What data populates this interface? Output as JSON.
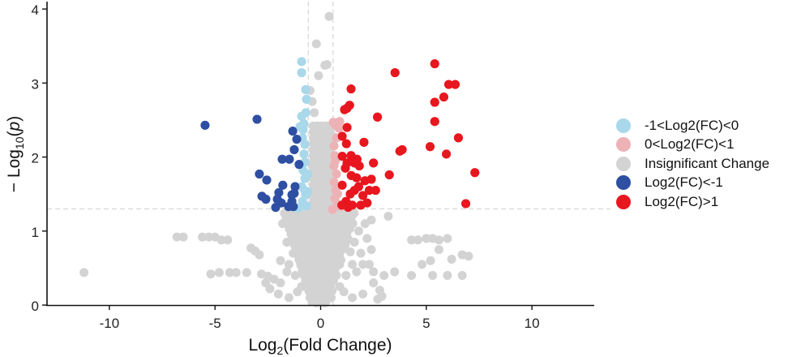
{
  "chart_data": {
    "type": "scatter",
    "title": "",
    "xlabel": "Log2(Fold Change)",
    "xlabel_main": "Log",
    "xlabel_sub": "2",
    "xlabel_rest": "(Fold Change)",
    "ylabel": "-Log10(p)",
    "ylabel_prefix": "− Log",
    "ylabel_sub": "10",
    "ylabel_open": "(",
    "ylabel_italic": "p",
    "ylabel_close": ")",
    "xlim": [
      -12.95,
      12.95
    ],
    "ylim": [
      0,
      4.1
    ],
    "xticks": [
      -10,
      -5,
      0,
      5,
      10
    ],
    "xtick_labels": [
      "-10",
      "-5",
      "0",
      "5",
      "10"
    ],
    "yticks": [
      0,
      1,
      2,
      3,
      4
    ],
    "ytick_labels": [
      "0",
      "1",
      "2",
      "3",
      "4"
    ],
    "grid": false,
    "threshold_lines": {
      "horizontal": 1.3,
      "vertical": [
        -0.585,
        0.585
      ],
      "color": "#D9D9D9",
      "style": "dashed"
    },
    "legend_position": "right",
    "series": [
      {
        "name": "-1<Log2(FC)<0",
        "color": "#A8D8EA",
        "points": [
          [
            -0.9,
            3.29
          ],
          [
            -0.9,
            3.14
          ],
          [
            -0.71,
            2.91
          ],
          [
            -0.67,
            2.78
          ],
          [
            -0.9,
            2.55
          ],
          [
            -0.79,
            2.45
          ],
          [
            -0.98,
            2.41
          ],
          [
            -0.83,
            2.37
          ],
          [
            -0.86,
            2.26
          ],
          [
            -0.75,
            2.17
          ],
          [
            -0.79,
            2.04
          ],
          [
            -0.75,
            1.93
          ],
          [
            -0.83,
            1.82
          ],
          [
            -0.75,
            1.71
          ],
          [
            -0.9,
            1.6
          ],
          [
            -0.71,
            1.49
          ],
          [
            -0.86,
            1.4
          ],
          [
            -0.67,
            1.34
          ],
          [
            -1.05,
            1.31
          ],
          [
            -0.6,
            1.53
          ],
          [
            -0.6,
            1.77
          ],
          [
            -0.7,
            2.6
          ],
          [
            -0.75,
            1.55
          ]
        ]
      },
      {
        "name": "0<Log2(FC)<1",
        "color": "#EDB2B6",
        "points": [
          [
            0.6,
            2.47
          ],
          [
            0.71,
            2.43
          ],
          [
            0.86,
            2.39
          ],
          [
            0.75,
            2.26
          ],
          [
            0.63,
            2.15
          ],
          [
            0.67,
            2.02
          ],
          [
            0.63,
            1.88
          ],
          [
            0.75,
            1.77
          ],
          [
            0.63,
            1.66
          ],
          [
            0.71,
            1.55
          ],
          [
            0.67,
            1.44
          ],
          [
            0.79,
            1.37
          ],
          [
            0.94,
            1.33
          ],
          [
            0.56,
            1.29
          ],
          [
            0.9,
            2.48
          ],
          [
            0.8,
            1.5
          ],
          [
            0.7,
            1.95
          ]
        ]
      },
      {
        "name": "Insignificant Change",
        "color": "#D3D3D3",
        "points": [
          [
            -11.2,
            0.44
          ],
          [
            -6.8,
            0.92
          ],
          [
            -6.5,
            0.92
          ],
          [
            -5.6,
            0.92
          ],
          [
            -5.3,
            0.92
          ],
          [
            -5,
            0.92
          ],
          [
            -4.7,
            0.88
          ],
          [
            -4.4,
            0.88
          ],
          [
            -3.3,
            0.77
          ],
          [
            -3.1,
            0.73
          ],
          [
            -2.9,
            0.68
          ],
          [
            -3.5,
            0.44
          ],
          [
            -4.3,
            0.44
          ],
          [
            -4,
            0.44
          ],
          [
            -4.8,
            0.44
          ],
          [
            -5.2,
            0.42
          ],
          [
            -2.8,
            0.42
          ],
          [
            -2.5,
            0.39
          ],
          [
            -2.2,
            0.35
          ],
          [
            -1.9,
            0.3
          ],
          [
            -1.6,
            0.45
          ],
          [
            -1.9,
            0.6
          ],
          [
            -1.6,
            0.85
          ],
          [
            -1.3,
            0.95
          ],
          [
            -1.8,
            1.1
          ],
          [
            -1.4,
            1.2
          ],
          [
            -1,
            1.1
          ],
          [
            -0.2,
            3.53
          ],
          [
            0.4,
            3.9
          ],
          [
            -0.1,
            3.1
          ],
          [
            0.2,
            3.24
          ],
          [
            0.3,
            3.25
          ],
          [
            -0.5,
            2.9
          ],
          [
            -0.4,
            2.75
          ],
          [
            -0.3,
            2.6
          ],
          [
            0.3,
            2.42
          ],
          [
            0.5,
            2.3
          ],
          [
            -0.4,
            1.9
          ],
          [
            -0.2,
            2.2
          ],
          [
            0.1,
            2.0
          ],
          [
            -0.1,
            1.7
          ],
          [
            0.2,
            1.6
          ],
          [
            -0.3,
            1.4
          ],
          [
            0.3,
            1.4
          ],
          [
            -0.6,
            1.2
          ],
          [
            0.6,
            1.2
          ],
          [
            -0.8,
            1.1
          ],
          [
            0.9,
            1.05
          ],
          [
            -0.4,
            1.0
          ],
          [
            0.4,
            1.0
          ],
          [
            0,
            1.1
          ],
          [
            -1.1,
            0.9
          ],
          [
            1.2,
            0.95
          ],
          [
            -0.7,
            0.8
          ],
          [
            0.7,
            0.8
          ],
          [
            0,
            0.85
          ],
          [
            -1.3,
            0.7
          ],
          [
            1.4,
            0.72
          ],
          [
            -0.5,
            0.65
          ],
          [
            0.5,
            0.65
          ],
          [
            -1.5,
            0.55
          ],
          [
            1.5,
            0.55
          ],
          [
            -0.9,
            0.55
          ],
          [
            0.9,
            0.55
          ],
          [
            0,
            0.6
          ],
          [
            -1.2,
            0.4
          ],
          [
            1.2,
            0.4
          ],
          [
            -0.6,
            0.4
          ],
          [
            0.6,
            0.4
          ],
          [
            0,
            0.4
          ],
          [
            -0.9,
            0.25
          ],
          [
            0.9,
            0.25
          ],
          [
            -0.3,
            0.2
          ],
          [
            0.3,
            0.2
          ],
          [
            0,
            0.1
          ],
          [
            -0.5,
            0.1
          ],
          [
            0.5,
            0.1
          ],
          [
            -0.2,
            0.03
          ],
          [
            0.2,
            0.03
          ],
          [
            1.8,
            1.0
          ],
          [
            2.1,
            1.1
          ],
          [
            2.4,
            1.15
          ],
          [
            3.2,
            1.2
          ],
          [
            1.6,
            0.85
          ],
          [
            2.2,
            0.9
          ],
          [
            2.4,
            0.75
          ],
          [
            1.9,
            0.7
          ],
          [
            2,
            0.55
          ],
          [
            2.5,
            0.45
          ],
          [
            2.3,
            0.55
          ],
          [
            1.7,
            0.45
          ],
          [
            2.5,
            0.3
          ],
          [
            2.8,
            0.2
          ],
          [
            2.9,
            0.12
          ],
          [
            2.7,
            0.08
          ],
          [
            4.3,
            0.88
          ],
          [
            4.6,
            0.88
          ],
          [
            5,
            0.9
          ],
          [
            5.3,
            0.9
          ],
          [
            5.6,
            0.88
          ],
          [
            6,
            0.9
          ],
          [
            5.6,
            0.75
          ],
          [
            5.2,
            0.6
          ],
          [
            4.8,
            0.55
          ],
          [
            6.2,
            0.62
          ],
          [
            6.7,
            0.68
          ],
          [
            4.3,
            0.4
          ],
          [
            5.3,
            0.4
          ],
          [
            6,
            0.4
          ],
          [
            6.7,
            0.4
          ],
          [
            7,
            0.66
          ],
          [
            3.5,
            0.45
          ],
          [
            3,
            0.4
          ],
          [
            -2.6,
            0.3
          ],
          [
            -2.4,
            0.22
          ],
          [
            -2,
            0.15
          ],
          [
            -1.5,
            0.1
          ],
          [
            1.5,
            0.1
          ],
          [
            2,
            0.15
          ],
          [
            -1.1,
            0.18
          ],
          [
            1.1,
            0.18
          ]
        ]
      },
      {
        "name": "Log2(FC)<-1",
        "color": "#2E4FA2",
        "points": [
          [
            -5.47,
            2.43
          ],
          [
            -3.01,
            2.51
          ],
          [
            -1.32,
            2.35
          ],
          [
            -1.13,
            2.24
          ],
          [
            -1.25,
            2.1
          ],
          [
            -1.82,
            1.97
          ],
          [
            -1.48,
            1.97
          ],
          [
            -1.02,
            1.9
          ],
          [
            -2.9,
            1.77
          ],
          [
            -2.55,
            1.69
          ],
          [
            -1.79,
            1.62
          ],
          [
            -1.21,
            1.6
          ],
          [
            -1.25,
            1.51
          ],
          [
            -2.78,
            1.47
          ],
          [
            -2.59,
            1.43
          ],
          [
            -1.98,
            1.52
          ],
          [
            -2.05,
            1.43
          ],
          [
            -1.86,
            1.38
          ],
          [
            -1.36,
            1.49
          ],
          [
            -1.36,
            1.4
          ],
          [
            -2.13,
            1.32
          ],
          [
            -1.52,
            1.33
          ],
          [
            -1.29,
            1.33
          ]
        ]
      },
      {
        "name": "Log2(FC)>1",
        "color": "#E8161E",
        "points": [
          [
            5.4,
            3.26
          ],
          [
            3.52,
            3.14
          ],
          [
            6.06,
            2.98
          ],
          [
            6.37,
            2.98
          ],
          [
            5.83,
            2.81
          ],
          [
            5.4,
            2.74
          ],
          [
            5.4,
            2.48
          ],
          [
            6.52,
            2.26
          ],
          [
            5.18,
            2.14
          ],
          [
            5.95,
            2.04
          ],
          [
            3.86,
            2.1
          ],
          [
            3.75,
            2.08
          ],
          [
            3.25,
            1.76
          ],
          [
            7.3,
            1.79
          ],
          [
            6.87,
            1.37
          ],
          [
            2.69,
            2.54
          ],
          [
            1.44,
            2.92
          ],
          [
            1.13,
            2.64
          ],
          [
            1.25,
            2.66
          ],
          [
            1.37,
            2.7
          ],
          [
            1.25,
            2.4
          ],
          [
            1.02,
            2.28
          ],
          [
            1.22,
            2.18
          ],
          [
            1.02,
            2.01
          ],
          [
            1.44,
            2.02
          ],
          [
            1.17,
            1.85
          ],
          [
            1.6,
            1.92
          ],
          [
            1.83,
            1.88
          ],
          [
            1.25,
            1.92
          ],
          [
            2.4,
            1.7
          ],
          [
            2.05,
            2.2
          ],
          [
            1.72,
            1.97
          ],
          [
            1.02,
            1.62
          ],
          [
            1.4,
            1.5
          ],
          [
            1.6,
            1.55
          ],
          [
            1.8,
            1.6
          ],
          [
            2.0,
            1.48
          ],
          [
            2.3,
            1.55
          ],
          [
            1.2,
            1.4
          ],
          [
            1.5,
            1.35
          ],
          [
            1.9,
            1.35
          ],
          [
            2.2,
            1.38
          ],
          [
            1.0,
            1.35
          ],
          [
            1.3,
            1.32
          ],
          [
            2.6,
            1.55
          ],
          [
            1.7,
            1.72
          ],
          [
            2.1,
            1.68
          ],
          [
            1.45,
            1.75
          ],
          [
            2.5,
            1.92
          ]
        ]
      }
    ]
  },
  "legend": {
    "items": [
      {
        "label": "-1<Log2(FC)<0",
        "color": "#A8D8EA"
      },
      {
        "label": "0<Log2(FC)<1",
        "color": "#EDB2B6"
      },
      {
        "label": "Insignificant Change",
        "color": "#D3D3D3"
      },
      {
        "label": "Log2(FC)<-1",
        "color": "#2E4FA2"
      },
      {
        "label": "Log2(FC)>1",
        "color": "#E8161E"
      }
    ]
  }
}
